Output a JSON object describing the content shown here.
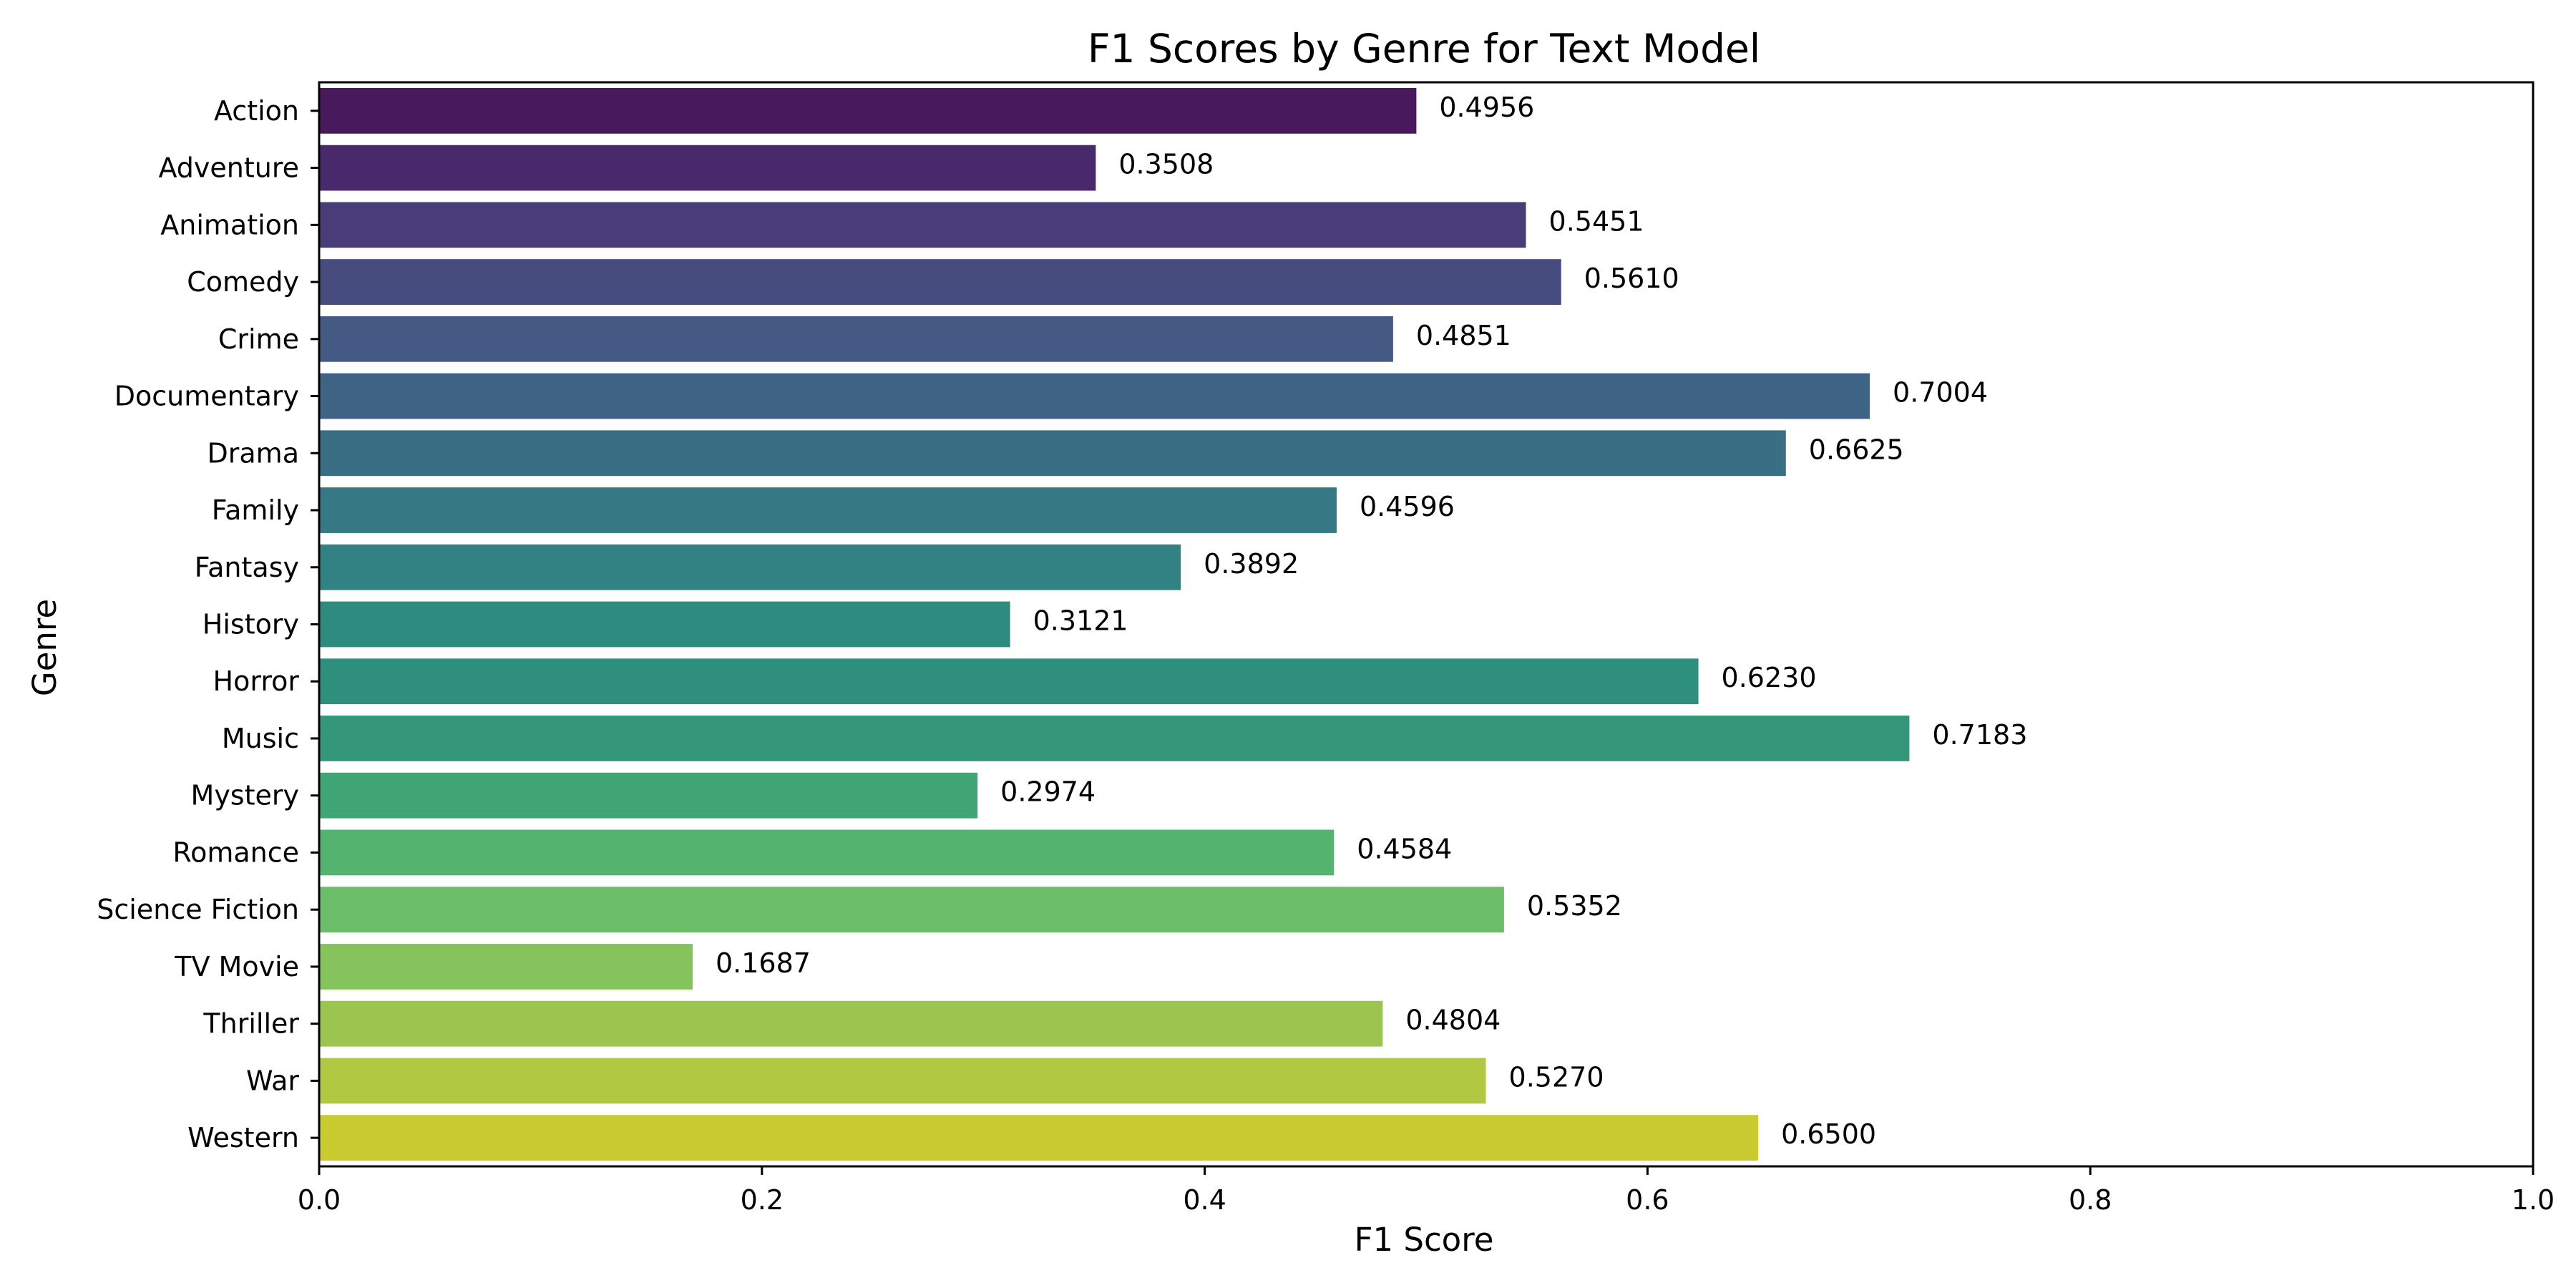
{
  "chart_data": {
    "type": "bar",
    "orientation": "horizontal",
    "title": "F1 Scores by Genre for Text Model",
    "xlabel": "F1 Score",
    "ylabel": "Genre",
    "xlim": [
      0,
      1.0
    ],
    "xticks": [
      "0.0",
      "0.2",
      "0.4",
      "0.6",
      "0.8",
      "1.0"
    ],
    "grid": false,
    "legend": "none",
    "categories": [
      "Action",
      "Adventure",
      "Animation",
      "Comedy",
      "Crime",
      "Documentary",
      "Drama",
      "Family",
      "Fantasy",
      "History",
      "Horror",
      "Music",
      "Mystery",
      "Romance",
      "Science Fiction",
      "TV Movie",
      "Thriller",
      "War",
      "Western"
    ],
    "values": [
      0.4956,
      0.3508,
      0.5451,
      0.561,
      0.4851,
      0.7004,
      0.6625,
      0.4596,
      0.3892,
      0.3121,
      0.623,
      0.7183,
      0.2974,
      0.4584,
      0.5352,
      0.1687,
      0.4804,
      0.527,
      0.65
    ],
    "value_labels": [
      "0.4956",
      "0.3508",
      "0.5451",
      "0.5610",
      "0.4851",
      "0.7004",
      "0.6625",
      "0.4596",
      "0.3892",
      "0.3121",
      "0.6230",
      "0.7183",
      "0.2974",
      "0.4584",
      "0.5352",
      "0.1687",
      "0.4804",
      "0.5270",
      "0.6500"
    ],
    "colors": [
      "#481a5c",
      "#482a6c",
      "#483d78",
      "#474c7e",
      "#445a84",
      "#3f6385",
      "#3a6e85",
      "#367884",
      "#338283",
      "#2e8b80",
      "#2f8f7d",
      "#34977a",
      "#41a676",
      "#54b36f",
      "#6bbd69",
      "#85c45d",
      "#9cc54f",
      "#b1c942",
      "#c9cb31"
    ]
  }
}
